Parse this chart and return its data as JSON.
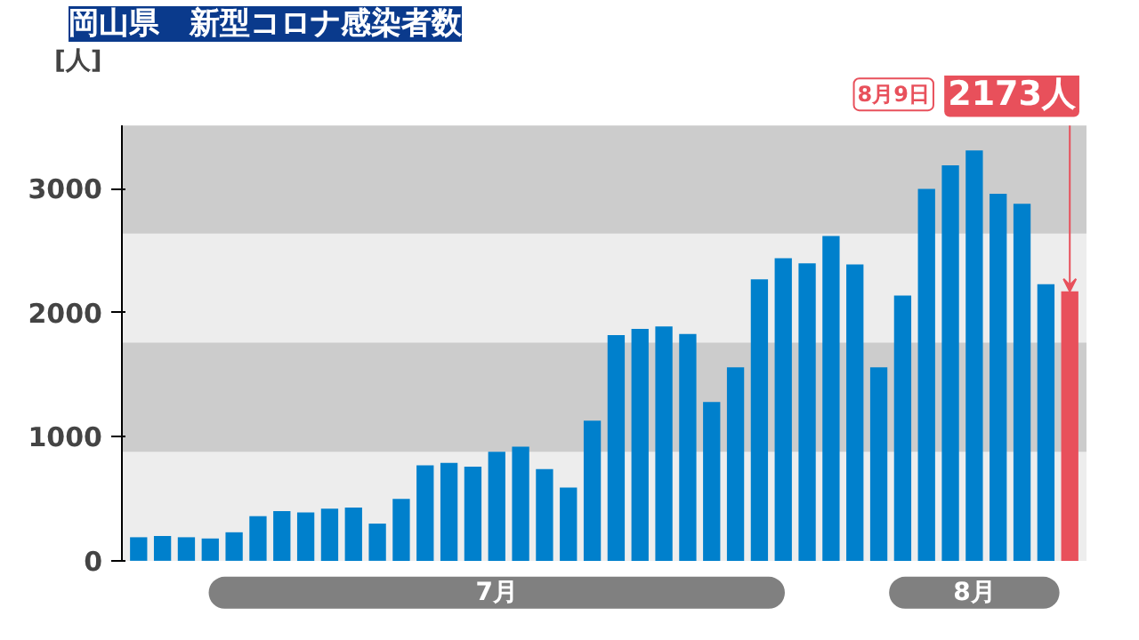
{
  "chart_data": {
    "type": "bar",
    "title": "岡山県　新型コロナ感染者数",
    "ylabel": "[人]",
    "categories": [
      null,
      null,
      null,
      null,
      null,
      null,
      null,
      null,
      null,
      null,
      null,
      null,
      null,
      null,
      null,
      null,
      null,
      null,
      null,
      null,
      null,
      null,
      null,
      null,
      null,
      null,
      null,
      null,
      null,
      null,
      null,
      null,
      null,
      null,
      null,
      null,
      null,
      null,
      null,
      null
    ],
    "values": [
      190,
      200,
      190,
      180,
      230,
      360,
      400,
      390,
      420,
      430,
      300,
      500,
      770,
      790,
      760,
      880,
      920,
      740,
      590,
      1130,
      1820,
      1870,
      1890,
      1830,
      1280,
      1560,
      2270,
      2440,
      2400,
      2620,
      2390,
      1560,
      2140,
      3000,
      3190,
      3310,
      2960,
      2880,
      2230,
      2173
    ],
    "colors": [
      "#0080cc",
      "#0080cc",
      "#0080cc",
      "#0080cc",
      "#0080cc",
      "#0080cc",
      "#0080cc",
      "#0080cc",
      "#0080cc",
      "#0080cc",
      "#0080cc",
      "#0080cc",
      "#0080cc",
      "#0080cc",
      "#0080cc",
      "#0080cc",
      "#0080cc",
      "#0080cc",
      "#0080cc",
      "#0080cc",
      "#0080cc",
      "#0080cc",
      "#0080cc",
      "#0080cc",
      "#0080cc",
      "#0080cc",
      "#0080cc",
      "#0080cc",
      "#0080cc",
      "#0080cc",
      "#0080cc",
      "#0080cc",
      "#0080cc",
      "#0080cc",
      "#0080cc",
      "#0080cc",
      "#0080cc",
      "#0080cc",
      "#0080cc",
      "#e8505b"
    ],
    "value_labels": [
      null,
      null,
      null,
      null,
      null,
      null,
      null,
      null,
      null,
      null,
      null,
      null,
      null,
      null,
      null,
      null,
      null,
      null,
      null,
      null,
      null,
      null,
      null,
      null,
      null,
      null,
      null,
      null,
      null,
      null,
      null,
      null,
      null,
      null,
      null,
      null,
      null,
      null,
      null,
      "2173人"
    ],
    "annotations": [
      "8月9日",
      "7月",
      "8月"
    ],
    "ylim": [
      0,
      3510
    ],
    "yticks": [
      0,
      1000,
      2000,
      3000
    ],
    "grid": false,
    "bands": [
      {
        "axis": "y",
        "from": 880,
        "to": 1760,
        "color": "#cccccc"
      },
      {
        "axis": "y",
        "from": 2640,
        "to": 3510,
        "color": "#cccccc"
      }
    ]
  }
}
